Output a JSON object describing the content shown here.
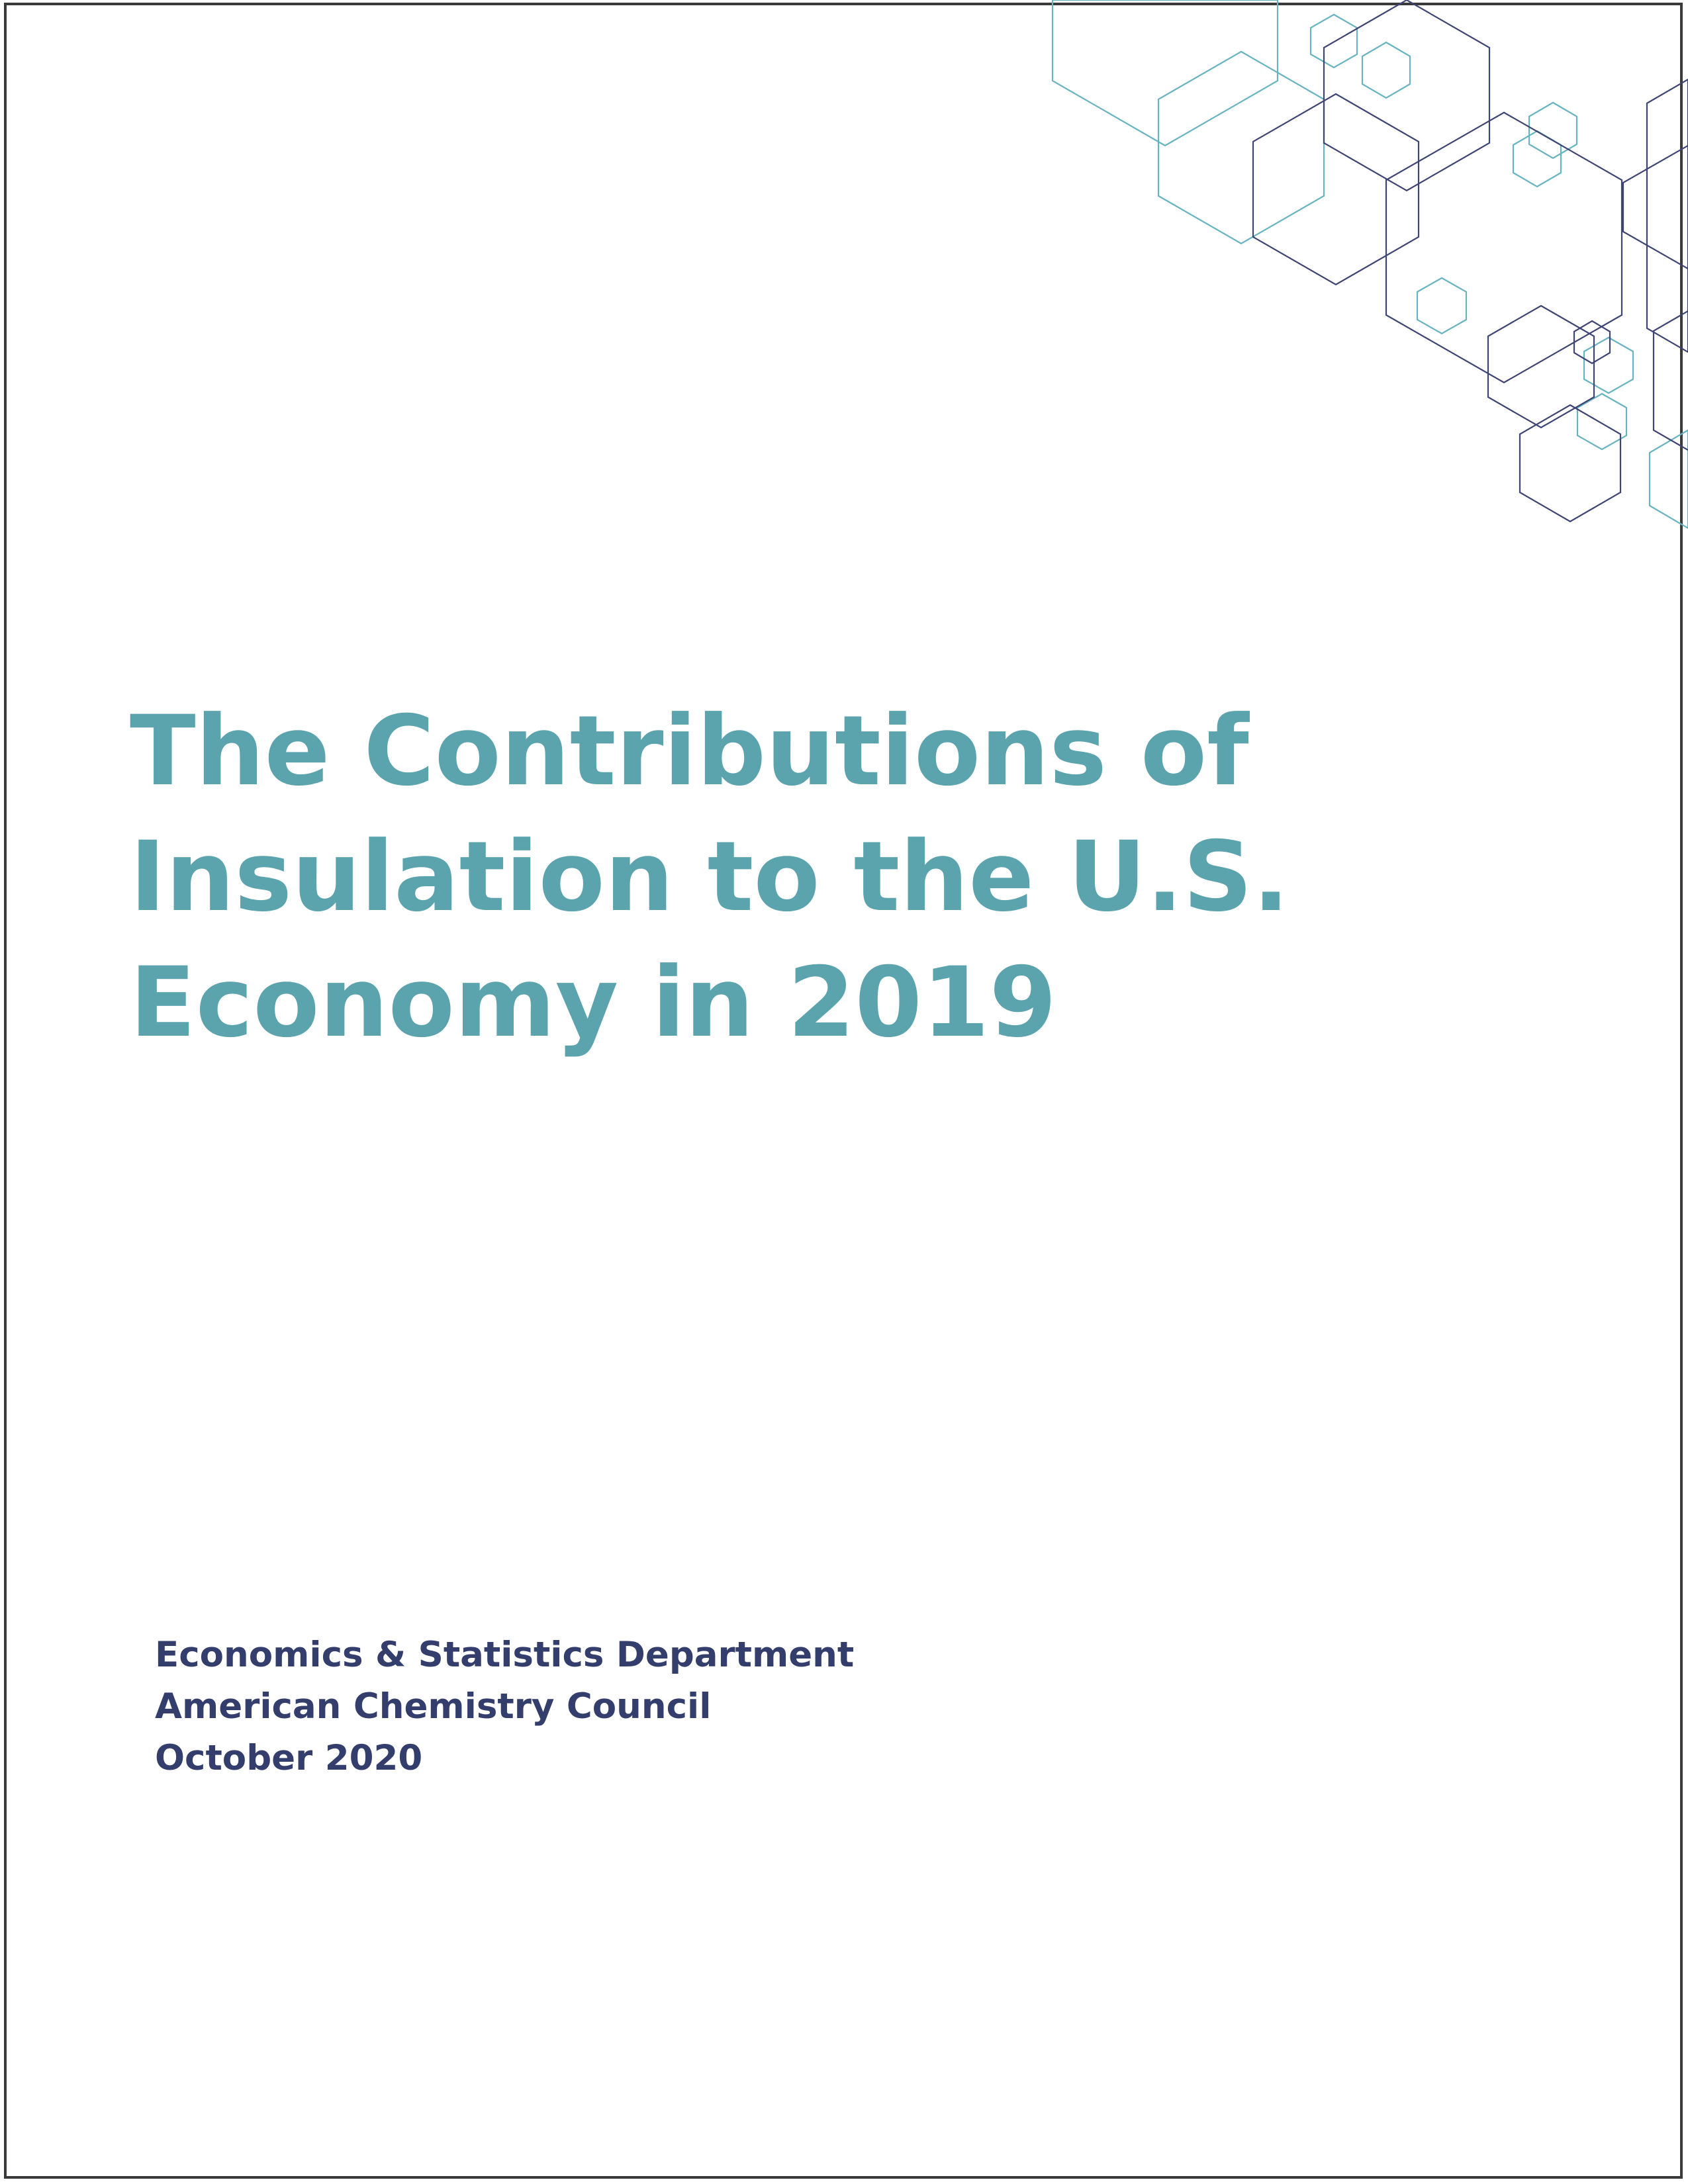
{
  "colors": {
    "title": "#5ba4ae",
    "meta": "#343e6c",
    "hex_teal": "#67b3bf",
    "hex_navy": "#3e4474",
    "border": "#3a3a3a"
  },
  "cover": {
    "title_lines": [
      "The Contributions of",
      "Insulation to the U.S.",
      "Economy in 2019"
    ],
    "department": "Economics & Statistics Department",
    "organization": "American Chemistry Council",
    "date": "October 2020"
  },
  "decoration": {
    "icon": "hexagon-network-pattern"
  }
}
